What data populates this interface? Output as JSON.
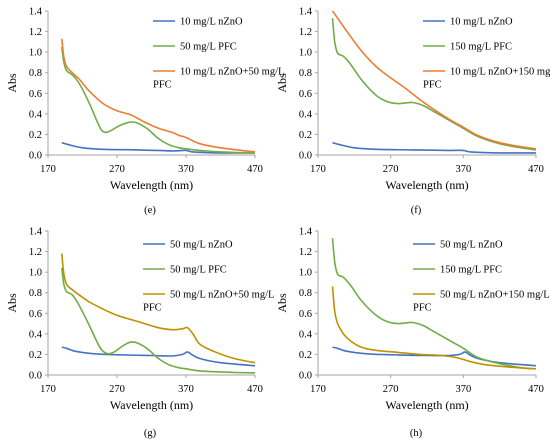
{
  "chart_data": [
    {
      "type": "line",
      "panel_label": "(e)",
      "xlabel": "Wavelength (nm)",
      "ylabel": "Abs",
      "xlim": [
        170,
        470
      ],
      "ylim": [
        0,
        1.4
      ],
      "xticks": [
        "170",
        "270",
        "370",
        "470"
      ],
      "yticks": [
        "0.0",
        "0.2",
        "0.4",
        "0.6",
        "0.8",
        "1.0",
        "1.2",
        "1.4"
      ],
      "legend_position": "right",
      "series": [
        {
          "name": "10 mg/L nZnO",
          "color": "#4472C4",
          "points": [
            [
              190,
              0.12
            ],
            [
              200,
              0.1
            ],
            [
              220,
              0.07
            ],
            [
              250,
              0.055
            ],
            [
              300,
              0.05
            ],
            [
              350,
              0.04
            ],
            [
              370,
              0.045
            ],
            [
              380,
              0.03
            ],
            [
              420,
              0.02
            ],
            [
              470,
              0.02
            ]
          ]
        },
        {
          "name": "50 mg/L PFC",
          "color": "#70AD47",
          "points": [
            [
              190,
              1.05
            ],
            [
              193,
              0.9
            ],
            [
              197,
              0.82
            ],
            [
              205,
              0.78
            ],
            [
              215,
              0.7
            ],
            [
              230,
              0.5
            ],
            [
              245,
              0.27
            ],
            [
              253,
              0.22
            ],
            [
              262,
              0.24
            ],
            [
              275,
              0.29
            ],
            [
              290,
              0.32
            ],
            [
              300,
              0.31
            ],
            [
              315,
              0.25
            ],
            [
              330,
              0.16
            ],
            [
              345,
              0.1
            ],
            [
              360,
              0.07
            ],
            [
              370,
              0.06
            ],
            [
              390,
              0.045
            ],
            [
              420,
              0.03
            ],
            [
              470,
              0.02
            ]
          ]
        },
        {
          "name": "10 mg/L nZnO+50 mg/L PFC",
          "color": "#ED7D31",
          "points": [
            [
              190,
              1.13
            ],
            [
              193,
              0.95
            ],
            [
              197,
              0.86
            ],
            [
              205,
              0.8
            ],
            [
              215,
              0.74
            ],
            [
              230,
              0.62
            ],
            [
              250,
              0.5
            ],
            [
              270,
              0.43
            ],
            [
              290,
              0.39
            ],
            [
              310,
              0.32
            ],
            [
              330,
              0.26
            ],
            [
              350,
              0.22
            ],
            [
              360,
              0.19
            ],
            [
              370,
              0.17
            ],
            [
              390,
              0.11
            ],
            [
              420,
              0.07
            ],
            [
              470,
              0.03
            ]
          ]
        }
      ]
    },
    {
      "type": "line",
      "panel_label": "(f)",
      "xlabel": "Wavelength (nm)",
      "ylabel": "Abs",
      "xlim": [
        170,
        470
      ],
      "ylim": [
        0,
        1.4
      ],
      "xticks": [
        "170",
        "270",
        "370",
        "470"
      ],
      "yticks": [
        "0.0",
        "0.2",
        "0.4",
        "0.6",
        "0.8",
        "1.0",
        "1.2",
        "1.4"
      ],
      "legend_position": "right",
      "series": [
        {
          "name": "10 mg/L nZnO",
          "color": "#4472C4",
          "points": [
            [
              190,
              0.12
            ],
            [
              200,
              0.1
            ],
            [
              220,
              0.07
            ],
            [
              250,
              0.055
            ],
            [
              300,
              0.05
            ],
            [
              350,
              0.045
            ],
            [
              370,
              0.045
            ],
            [
              380,
              0.03
            ],
            [
              420,
              0.02
            ],
            [
              470,
              0.02
            ]
          ]
        },
        {
          "name": "150 mg/L PFC",
          "color": "#70AD47",
          "points": [
            [
              190,
              1.33
            ],
            [
              193,
              1.1
            ],
            [
              197,
              0.99
            ],
            [
              205,
              0.96
            ],
            [
              215,
              0.88
            ],
            [
              230,
              0.73
            ],
            [
              250,
              0.58
            ],
            [
              265,
              0.52
            ],
            [
              280,
              0.5
            ],
            [
              300,
              0.51
            ],
            [
              315,
              0.48
            ],
            [
              330,
              0.42
            ],
            [
              350,
              0.34
            ],
            [
              370,
              0.26
            ],
            [
              390,
              0.18
            ],
            [
              420,
              0.11
            ],
            [
              450,
              0.07
            ],
            [
              470,
              0.05
            ]
          ]
        },
        {
          "name": "10 mg/L nZnO+150 mg/L PFC",
          "color": "#ED7D31",
          "points": [
            [
              190,
              1.4
            ],
            [
              200,
              1.3
            ],
            [
              215,
              1.15
            ],
            [
              230,
              1.01
            ],
            [
              250,
              0.86
            ],
            [
              270,
              0.75
            ],
            [
              290,
              0.65
            ],
            [
              310,
              0.54
            ],
            [
              330,
              0.44
            ],
            [
              350,
              0.35
            ],
            [
              370,
              0.27
            ],
            [
              390,
              0.19
            ],
            [
              420,
              0.12
            ],
            [
              450,
              0.08
            ],
            [
              470,
              0.06
            ]
          ]
        }
      ]
    },
    {
      "type": "line",
      "panel_label": "(g)",
      "xlabel": "Wavelength (nm)",
      "ylabel": "Abs",
      "xlim": [
        170,
        470
      ],
      "ylim": [
        0,
        1.4
      ],
      "xticks": [
        "170",
        "270",
        "370",
        "470"
      ],
      "yticks": [
        "0.0",
        "0.2",
        "0.4",
        "0.6",
        "0.8",
        "1.0",
        "1.2",
        "1.4"
      ],
      "legend_position": "right",
      "series": [
        {
          "name": "50 mg/L nZnO",
          "color": "#4472C4",
          "points": [
            [
              190,
              0.27
            ],
            [
              197,
              0.26
            ],
            [
              210,
              0.23
            ],
            [
              240,
              0.205
            ],
            [
              280,
              0.195
            ],
            [
              320,
              0.19
            ],
            [
              350,
              0.185
            ],
            [
              365,
              0.2
            ],
            [
              372,
              0.225
            ],
            [
              378,
              0.2
            ],
            [
              390,
              0.16
            ],
            [
              420,
              0.12
            ],
            [
              470,
              0.09
            ]
          ]
        },
        {
          "name": "50 mg/L PFC",
          "color": "#70AD47",
          "points": [
            [
              190,
              1.04
            ],
            [
              193,
              0.88
            ],
            [
              197,
              0.81
            ],
            [
              205,
              0.78
            ],
            [
              215,
              0.68
            ],
            [
              230,
              0.48
            ],
            [
              245,
              0.27
            ],
            [
              255,
              0.21
            ],
            [
              265,
              0.22
            ],
            [
              280,
              0.29
            ],
            [
              290,
              0.32
            ],
            [
              300,
              0.31
            ],
            [
              315,
              0.25
            ],
            [
              330,
              0.16
            ],
            [
              345,
              0.1
            ],
            [
              360,
              0.07
            ],
            [
              370,
              0.06
            ],
            [
              390,
              0.04
            ],
            [
              420,
              0.03
            ],
            [
              470,
              0.02
            ]
          ]
        },
        {
          "name": "50 mg/L nZnO+50 mg/L PFC",
          "color": "#BF9000",
          "points": [
            [
              190,
              1.18
            ],
            [
              193,
              0.98
            ],
            [
              197,
              0.88
            ],
            [
              205,
              0.83
            ],
            [
              215,
              0.78
            ],
            [
              230,
              0.71
            ],
            [
              250,
              0.64
            ],
            [
              270,
              0.58
            ],
            [
              290,
              0.54
            ],
            [
              310,
              0.5
            ],
            [
              330,
              0.46
            ],
            [
              350,
              0.44
            ],
            [
              365,
              0.45
            ],
            [
              372,
              0.46
            ],
            [
              380,
              0.4
            ],
            [
              390,
              0.3
            ],
            [
              410,
              0.23
            ],
            [
              440,
              0.16
            ],
            [
              470,
              0.12
            ]
          ]
        }
      ]
    },
    {
      "type": "line",
      "panel_label": "(h)",
      "xlabel": "Wavelength (nm)",
      "ylabel": "Abs",
      "xlim": [
        170,
        470
      ],
      "ylim": [
        0,
        1.4
      ],
      "xticks": [
        "170",
        "270",
        "370",
        "470"
      ],
      "yticks": [
        "0.0",
        "0.2",
        "0.4",
        "0.6",
        "0.8",
        "1.0",
        "1.2",
        "1.4"
      ],
      "legend_position": "right",
      "series": [
        {
          "name": "50 mg/L nZnO",
          "color": "#4472C4",
          "points": [
            [
              190,
              0.27
            ],
            [
              197,
              0.26
            ],
            [
              210,
              0.23
            ],
            [
              240,
              0.205
            ],
            [
              280,
              0.195
            ],
            [
              320,
              0.19
            ],
            [
              350,
              0.19
            ],
            [
              365,
              0.2
            ],
            [
              372,
              0.225
            ],
            [
              378,
              0.2
            ],
            [
              390,
              0.16
            ],
            [
              420,
              0.12
            ],
            [
              470,
              0.09
            ]
          ]
        },
        {
          "name": "150 mg/L PFC",
          "color": "#70AD47",
          "points": [
            [
              190,
              1.33
            ],
            [
              193,
              1.1
            ],
            [
              197,
              0.98
            ],
            [
              205,
              0.95
            ],
            [
              215,
              0.87
            ],
            [
              230,
              0.72
            ],
            [
              250,
              0.58
            ],
            [
              265,
              0.52
            ],
            [
              280,
              0.5
            ],
            [
              300,
              0.51
            ],
            [
              315,
              0.48
            ],
            [
              330,
              0.42
            ],
            [
              350,
              0.34
            ],
            [
              370,
              0.26
            ],
            [
              390,
              0.17
            ],
            [
              420,
              0.11
            ],
            [
              450,
              0.07
            ],
            [
              470,
              0.06
            ]
          ]
        },
        {
          "name": "50 mg/L nZnO+150 mg/L PFC",
          "color": "#BF9000",
          "points": [
            [
              190,
              0.86
            ],
            [
              193,
              0.62
            ],
            [
              197,
              0.5
            ],
            [
              205,
              0.4
            ],
            [
              215,
              0.33
            ],
            [
              230,
              0.27
            ],
            [
              250,
              0.24
            ],
            [
              280,
              0.22
            ],
            [
              310,
              0.2
            ],
            [
              340,
              0.19
            ],
            [
              360,
              0.17
            ],
            [
              380,
              0.13
            ],
            [
              400,
              0.1
            ],
            [
              430,
              0.08
            ],
            [
              470,
              0.06
            ]
          ]
        }
      ]
    }
  ]
}
